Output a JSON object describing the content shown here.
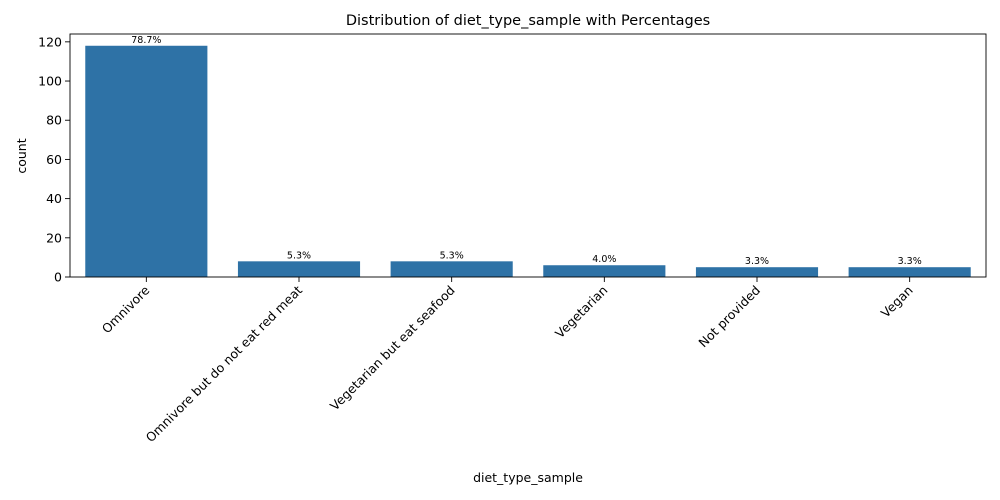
{
  "chart_data": {
    "type": "bar",
    "title": "Distribution of diet_type_sample with Percentages",
    "xlabel": "diet_type_sample",
    "ylabel": "count",
    "categories": [
      "Omnivore",
      "Omnivore but do not eat red meat",
      "Vegetarian but eat seafood",
      "Vegetarian",
      "Not provided",
      "Vegan"
    ],
    "values": [
      118,
      8,
      8,
      6,
      5,
      5
    ],
    "data_labels": [
      "78.7%",
      "5.3%",
      "5.3%",
      "4.0%",
      "3.3%",
      "3.3%"
    ],
    "ylim": [
      0,
      124
    ],
    "yticks": [
      0,
      20,
      40,
      60,
      80,
      100,
      120
    ],
    "grid": false,
    "color": "#2e72a6"
  }
}
